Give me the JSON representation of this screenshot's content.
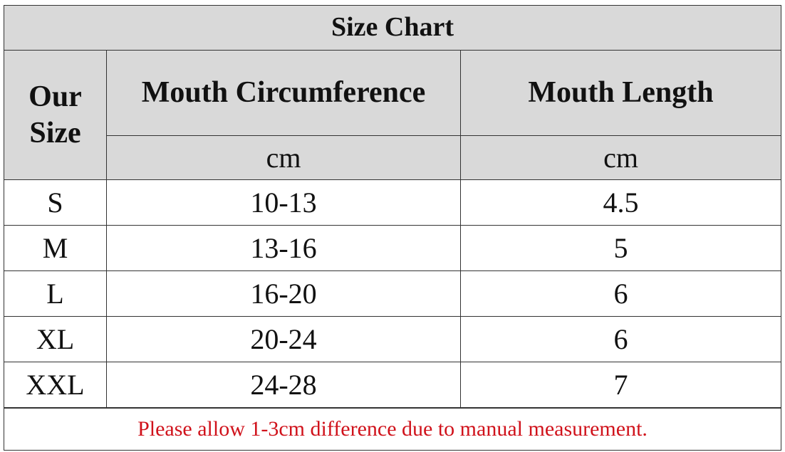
{
  "title": "Size Chart",
  "table": {
    "columns": [
      "Our Size",
      "Mouth Circumference",
      "Mouth Length"
    ],
    "units": [
      "cm",
      "cm"
    ],
    "rows": [
      [
        "S",
        "10-13",
        "4.5"
      ],
      [
        "M",
        "13-16",
        "5"
      ],
      [
        "L",
        "16-20",
        "6"
      ],
      [
        "XL",
        "20-24",
        "6"
      ],
      [
        "XXL",
        "24-28",
        "7"
      ]
    ]
  },
  "note": "Please allow 1-3cm difference due to manual measurement."
}
